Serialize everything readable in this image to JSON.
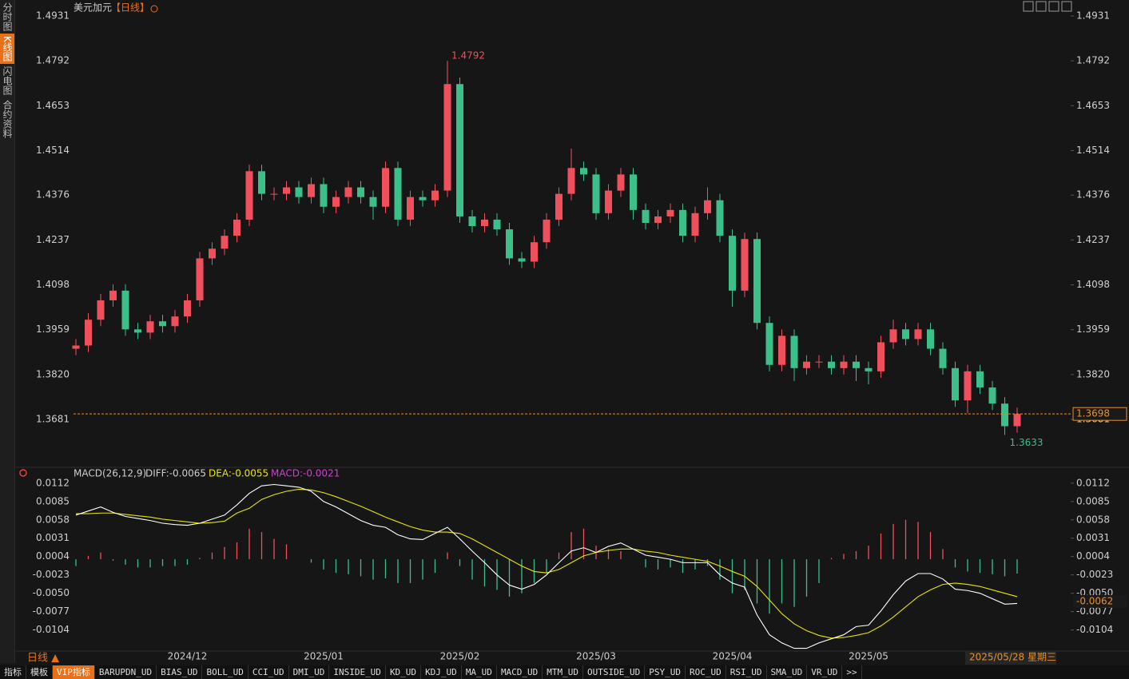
{
  "sidebar": {
    "tabs": [
      "分时图",
      "K线图",
      "闪电图",
      "合约资料"
    ]
  },
  "header": {
    "symbol": "美元加元",
    "period": "【日线】"
  },
  "chart_data": [
    {
      "type": "candlestick",
      "categories": [
        null,
        null,
        null,
        null,
        null,
        null,
        null,
        null,
        null,
        "2024/12",
        null,
        null,
        null,
        null,
        null,
        null,
        null,
        null,
        null,
        null,
        "2025/01",
        null,
        null,
        null,
        null,
        null,
        null,
        null,
        null,
        null,
        null,
        "2025/02",
        null,
        null,
        null,
        null,
        null,
        null,
        null,
        null,
        null,
        null,
        "2025/03",
        null,
        null,
        null,
        null,
        null,
        null,
        null,
        null,
        null,
        null,
        "2025/04",
        null,
        null,
        null,
        null,
        null,
        null,
        null,
        null,
        null,
        null,
        "2025/05",
        null,
        null,
        null,
        null,
        null,
        null,
        null,
        null,
        null,
        null,
        null,
        null
      ],
      "open": [
        1.39,
        1.391,
        1.399,
        1.405,
        1.408,
        1.396,
        1.395,
        1.3985,
        1.397,
        1.4,
        1.405,
        1.418,
        1.421,
        1.425,
        1.43,
        1.445,
        1.438,
        1.438,
        1.44,
        1.437,
        1.441,
        1.434,
        1.437,
        1.44,
        1.437,
        1.434,
        1.446,
        1.43,
        1.437,
        1.436,
        1.439,
        1.472,
        1.431,
        1.428,
        1.43,
        1.427,
        1.418,
        1.417,
        1.423,
        1.43,
        1.438,
        1.446,
        1.444,
        1.432,
        1.439,
        1.444,
        1.433,
        1.429,
        1.431,
        1.433,
        1.425,
        1.432,
        1.436,
        1.425,
        1.408,
        1.424,
        1.398,
        1.385,
        1.394,
        1.384,
        1.386,
        1.386,
        1.384,
        1.386,
        1.384,
        1.383,
        1.392,
        1.396,
        1.393,
        1.396,
        1.39,
        1.384,
        1.374,
        1.383,
        1.378,
        1.373,
        1.366
      ],
      "high": [
        1.393,
        1.401,
        1.407,
        1.41,
        1.41,
        1.398,
        1.4005,
        1.4005,
        1.402,
        1.407,
        1.42,
        1.423,
        1.427,
        1.432,
        1.447,
        1.447,
        1.44,
        1.442,
        1.442,
        1.443,
        1.443,
        1.439,
        1.442,
        1.442,
        1.439,
        1.448,
        1.448,
        1.439,
        1.439,
        1.441,
        1.4792,
        1.474,
        1.433,
        1.432,
        1.432,
        1.429,
        1.42,
        1.425,
        1.432,
        1.44,
        1.452,
        1.448,
        1.446,
        1.441,
        1.446,
        1.446,
        1.435,
        1.433,
        1.435,
        1.435,
        1.434,
        1.44,
        1.438,
        1.427,
        1.426,
        1.426,
        1.4,
        1.396,
        1.396,
        1.388,
        1.388,
        1.388,
        1.388,
        1.388,
        1.386,
        1.394,
        1.399,
        1.398,
        1.398,
        1.398,
        1.392,
        1.386,
        1.385,
        1.385,
        1.38,
        1.375,
        1.3718
      ],
      "low": [
        1.388,
        1.389,
        1.397,
        1.403,
        1.394,
        1.393,
        1.393,
        1.395,
        1.395,
        1.398,
        1.403,
        1.416,
        1.419,
        1.423,
        1.428,
        1.436,
        1.436,
        1.436,
        1.435,
        1.435,
        1.432,
        1.432,
        1.435,
        1.435,
        1.43,
        1.432,
        1.428,
        1.428,
        1.434,
        1.434,
        1.437,
        1.429,
        1.426,
        1.426,
        1.425,
        1.416,
        1.415,
        1.415,
        1.421,
        1.428,
        1.436,
        1.442,
        1.43,
        1.43,
        1.437,
        1.43,
        1.427,
        1.427,
        1.429,
        1.423,
        1.423,
        1.43,
        1.423,
        1.403,
        1.406,
        1.396,
        1.383,
        1.383,
        1.38,
        1.382,
        1.384,
        1.382,
        1.382,
        1.38,
        1.379,
        1.381,
        1.39,
        1.391,
        1.391,
        1.388,
        1.382,
        1.372,
        1.37,
        1.376,
        1.371,
        1.3633,
        1.364
      ],
      "close": [
        1.391,
        1.399,
        1.405,
        1.408,
        1.396,
        1.395,
        1.3985,
        1.397,
        1.4,
        1.405,
        1.418,
        1.421,
        1.425,
        1.43,
        1.445,
        1.438,
        1.438,
        1.44,
        1.437,
        1.441,
        1.434,
        1.437,
        1.44,
        1.437,
        1.434,
        1.446,
        1.43,
        1.437,
        1.436,
        1.439,
        1.472,
        1.431,
        1.428,
        1.43,
        1.427,
        1.418,
        1.417,
        1.423,
        1.43,
        1.438,
        1.446,
        1.444,
        1.432,
        1.439,
        1.444,
        1.433,
        1.429,
        1.431,
        1.433,
        1.425,
        1.432,
        1.436,
        1.425,
        1.408,
        1.424,
        1.398,
        1.385,
        1.394,
        1.384,
        1.386,
        1.386,
        1.384,
        1.386,
        1.384,
        1.383,
        1.392,
        1.396,
        1.393,
        1.396,
        1.39,
        1.384,
        1.374,
        1.383,
        1.378,
        1.373,
        1.366,
        1.3698
      ],
      "up_color": "#f0505c",
      "down_color": "#3dbf8a",
      "last_color": "#e8902a",
      "ylim": [
        1.3545,
        1.4931
      ],
      "yticks": [
        1.4931,
        1.4792,
        1.4653,
        1.4514,
        1.4376,
        1.4237,
        1.4098,
        1.3959,
        {
          "value": 1.382,
          "label": "1.3820"
        },
        1.3681
      ]
    },
    {
      "type": "macd",
      "title": "MACD(26,12,9)",
      "labels": {
        "diff": "DIFF:-0.0065",
        "dea": "DEA:-0.0055",
        "macd": "MACD:-0.0021"
      },
      "diff": {
        "color": "#ffffff",
        "values": [
          0.0065,
          0.0071,
          0.0077,
          0.0069,
          0.0063,
          0.006,
          0.0057,
          0.0053,
          0.0051,
          0.005,
          0.0053,
          0.0059,
          0.0065,
          0.008,
          0.0097,
          0.0108,
          0.011,
          0.0108,
          0.0106,
          0.01,
          0.0085,
          0.0077,
          0.0067,
          0.0057,
          0.005,
          0.0047,
          0.0036,
          0.003,
          0.0029,
          0.0038,
          0.0047,
          0.003,
          0.0012,
          -0.0005,
          -0.0023,
          -0.0038,
          -0.0044,
          -0.0037,
          -0.0023,
          -0.0005,
          0.0012,
          0.0017,
          0.001,
          0.0019,
          0.0024,
          0.0015,
          0.0006,
          0.0003,
          0.0,
          -0.0005,
          -0.0005,
          -0.0005,
          -0.0023,
          -0.0035,
          -0.0041,
          -0.0082,
          -0.0111,
          -0.0123,
          -0.0131,
          -0.0131,
          -0.0123,
          -0.0117,
          -0.0111,
          -0.0099,
          -0.0097,
          -0.0076,
          -0.0052,
          -0.0032,
          -0.0021,
          -0.0021,
          -0.0029,
          -0.0044,
          -0.0046,
          -0.005,
          -0.0058,
          -0.0066,
          -0.0065
        ]
      },
      "dea": {
        "color": "#e6e600",
        "values": [
          0.0067,
          0.0067,
          0.0068,
          0.0068,
          0.0066,
          0.0064,
          0.0062,
          0.0059,
          0.0057,
          0.0055,
          0.0053,
          0.0054,
          0.0056,
          0.0068,
          0.0075,
          0.0088,
          0.0095,
          0.01,
          0.0103,
          0.0102,
          0.0098,
          0.0092,
          0.0085,
          0.0078,
          0.007,
          0.0062,
          0.0055,
          0.0048,
          0.0043,
          0.004,
          0.004,
          0.0038,
          0.003,
          0.002,
          0.001,
          0.0,
          -0.001,
          -0.0018,
          -0.002,
          -0.0015,
          -0.0005,
          0.0005,
          0.001,
          0.0013,
          0.0015,
          0.0015,
          0.0012,
          0.001,
          0.0006,
          0.0003,
          0.0,
          -0.0003,
          -0.001,
          -0.0018,
          -0.0025,
          -0.004,
          -0.006,
          -0.008,
          -0.0095,
          -0.0105,
          -0.0112,
          -0.0116,
          -0.0115,
          -0.0112,
          -0.0108,
          -0.0098,
          -0.0085,
          -0.007,
          -0.0055,
          -0.0045,
          -0.0037,
          -0.0035,
          -0.0037,
          -0.004,
          -0.0045,
          -0.005,
          -0.0055
        ]
      },
      "macd": {
        "color": "#d040d0",
        "up_color": "#f0505c",
        "down_color": "#3dbf8a",
        "values": [
          -0.001,
          0.0005,
          0.001,
          -0.0002,
          -0.0008,
          -0.0012,
          -0.0012,
          -0.001,
          -0.001,
          -0.0008,
          0.0002,
          0.001,
          0.0018,
          0.0025,
          0.0045,
          0.004,
          0.003,
          0.0022,
          0.0,
          -0.0005,
          -0.0015,
          -0.002,
          -0.0022,
          -0.0025,
          -0.003,
          -0.0028,
          -0.0035,
          -0.0035,
          -0.003,
          -0.002,
          0.001,
          -0.001,
          -0.003,
          -0.004,
          -0.0045,
          -0.0055,
          -0.005,
          -0.0035,
          -0.002,
          0.001,
          0.004,
          0.0045,
          0.002,
          0.0015,
          0.0012,
          0.0,
          -0.0012,
          -0.0015,
          -0.0012,
          -0.002,
          -0.0015,
          -0.001,
          -0.003,
          -0.005,
          -0.0045,
          -0.0065,
          -0.008,
          -0.0065,
          -0.007,
          -0.0055,
          -0.0035,
          0.0002,
          0.0008,
          0.0012,
          0.002,
          0.0038,
          0.0052,
          0.0058,
          0.0055,
          0.004,
          0.0015,
          -0.0012,
          -0.0018,
          -0.002,
          -0.0022,
          -0.0025,
          -0.0021
        ]
      },
      "cursor_value": -0.0062,
      "ylim": [
        -0.0135,
        0.012
      ],
      "yticks": [
        0.0112,
        0.0085,
        0.0058,
        0.0031,
        0.0004,
        -0.0023,
        {
          "value": -0.005,
          "label": "-0.0050"
        },
        -0.0077,
        -0.0104
      ]
    }
  ],
  "footer": {
    "period_button": "日线 ▲",
    "cursor_date": "2025/05/28 星期三",
    "tabs": [
      "指标",
      "模板",
      "VIP指标",
      "BARUPDN_UD",
      "BIAS_UD",
      "BOLL_UD",
      "CCI_UD",
      "DMI_UD",
      "INSIDE_UD",
      "KD_UD",
      "KDJ_UD",
      "MA_UD",
      "MACD_UD",
      "MTM_UD",
      "OUTSIDE_UD",
      "PSY_UD",
      "ROC_UD",
      "RSI_UD",
      "SMA_UD",
      "VR_UD",
      ">>"
    ]
  }
}
